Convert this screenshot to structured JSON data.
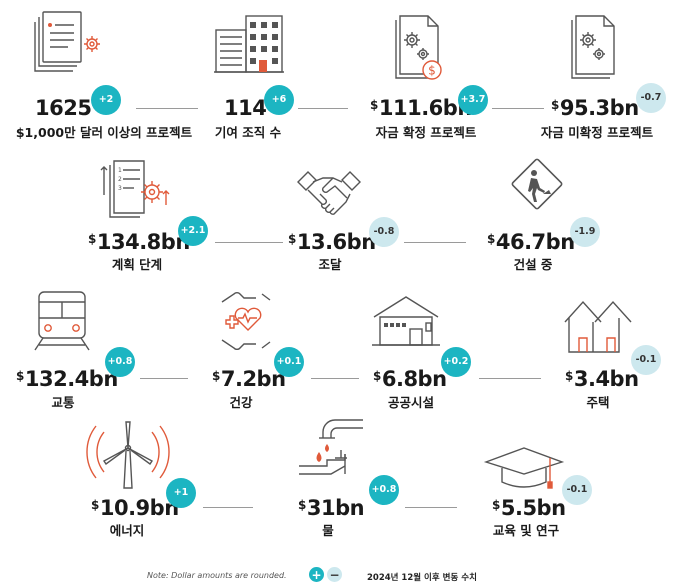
{
  "accent_positive": "#1cb5c2",
  "accent_negative": "#cde8ee",
  "icon_color": "#555555",
  "icon_accent": "#e05a3a",
  "stats": [
    {
      "id": "projects-over-10m",
      "value": "1625",
      "label": "$1,000만 달러 이상의 프로젝트",
      "change": "+2",
      "direction": "positive",
      "icon": "document-gear-icon"
    },
    {
      "id": "contributing-orgs",
      "value": "114",
      "label": "기여 조직 수",
      "change": "+6",
      "direction": "positive",
      "icon": "buildings-icon"
    },
    {
      "id": "funded-projects",
      "dollar": "$",
      "value": "111.6bn",
      "label": "자금 확정 프로젝트",
      "change": "+3.7",
      "direction": "positive",
      "icon": "document-dollar-icon"
    },
    {
      "id": "unfunded-projects",
      "dollar": "$",
      "value": "95.3bn",
      "label": "자금 미확정 프로젝트",
      "change": "-0.7",
      "direction": "negative",
      "icon": "document-gears-icon"
    },
    {
      "id": "planning-stage",
      "dollar": "$",
      "value": "134.8bn",
      "label": "계획 단계",
      "change": "+2.1",
      "direction": "positive",
      "icon": "plan-list-gear-icon"
    },
    {
      "id": "procurement",
      "dollar": "$",
      "value": "13.6bn",
      "label": "조달",
      "change": "-0.8",
      "direction": "negative",
      "icon": "handshake-icon"
    },
    {
      "id": "under-construction",
      "dollar": "$",
      "value": "46.7bn",
      "label": "건설 중",
      "change": "-1.9",
      "direction": "negative",
      "icon": "construction-sign-icon"
    },
    {
      "id": "transport",
      "dollar": "$",
      "value": "132.4bn",
      "label": "교통",
      "change": "+0.8",
      "direction": "positive",
      "icon": "train-icon"
    },
    {
      "id": "health",
      "dollar": "$",
      "value": "7.2bn",
      "label": "건강",
      "change": "+0.1",
      "direction": "positive",
      "icon": "health-hands-icon"
    },
    {
      "id": "public-facilities",
      "dollar": "$",
      "value": "6.8bn",
      "label": "공공시설",
      "change": "+0.2",
      "direction": "positive",
      "icon": "public-building-icon"
    },
    {
      "id": "housing",
      "dollar": "$",
      "value": "3.4bn",
      "label": "주택",
      "change": "-0.1",
      "direction": "negative",
      "icon": "houses-icon"
    },
    {
      "id": "energy",
      "dollar": "$",
      "value": "10.9bn",
      "label": "에너지",
      "change": "+1",
      "direction": "positive",
      "icon": "wind-turbine-icon"
    },
    {
      "id": "water",
      "dollar": "$",
      "value": "31bn",
      "label": "물",
      "change": "+0.8",
      "direction": "positive",
      "icon": "water-tap-icon"
    },
    {
      "id": "education-research",
      "dollar": "$",
      "value": "5.5bn",
      "label": "교육 및 연구",
      "change": "-0.1",
      "direction": "negative",
      "icon": "graduation-cap-icon"
    }
  ],
  "footer": {
    "note": "Note: Dollar amounts are rounded.",
    "legend_plus": "+",
    "legend_minus": "−",
    "legend_text": "2024년   12월  이후 변동 수치"
  }
}
